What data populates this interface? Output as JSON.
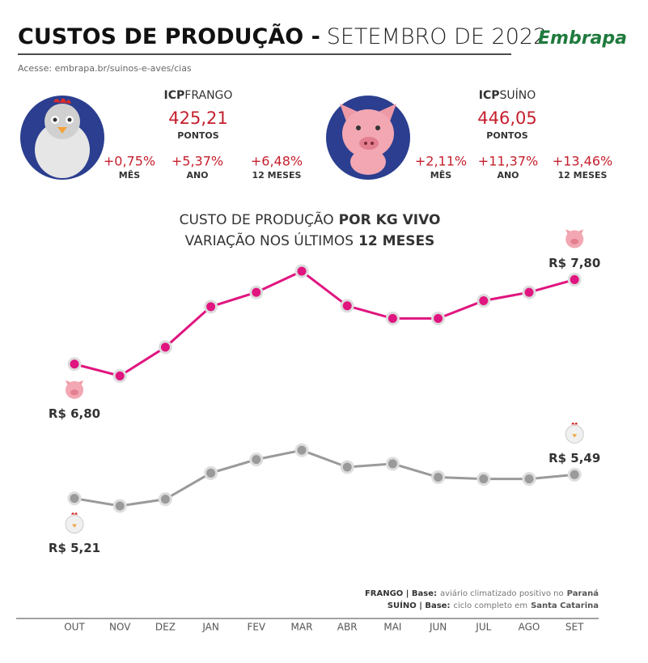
{
  "header": {
    "title_bold": "CUSTOS DE PRODUÇÃO -",
    "title_light": "SETEMBRO DE 2022",
    "logo": "Embrapa",
    "source": "Acesse: embrapa.br/suinos-e-aves/cias"
  },
  "indices": [
    {
      "prefix": "ICP",
      "name": "FRANGO",
      "value": "425,21",
      "unit": "PONTOS",
      "changes": [
        {
          "value": "+0,75%",
          "period": "MÊS"
        },
        {
          "value": "+5,37%",
          "period": "ANO"
        },
        {
          "value": "+6,48%",
          "period": "12 MESES"
        }
      ]
    },
    {
      "prefix": "ICP",
      "name": "SUÍNO",
      "value": "446,05",
      "unit": "PONTOS",
      "changes": [
        {
          "value": "+2,11%",
          "period": "MÊS"
        },
        {
          "value": "+11,37%",
          "period": "ANO"
        },
        {
          "value": "+13,46%",
          "period": "12 MESES"
        }
      ]
    }
  ],
  "chart_data": {
    "type": "line",
    "title": [
      "CUSTO DE PRODUÇÃO",
      "POR KG VIVO"
    ],
    "subtitle": [
      "VARIAÇÃO NOS ÚLTIMOS",
      "12 MESES"
    ],
    "categories": [
      "OUT",
      "NOV",
      "DEZ",
      "JAN",
      "FEV",
      "MAR",
      "ABR",
      "MAI",
      "JUN",
      "JUL",
      "AGO",
      "SET"
    ],
    "series": [
      {
        "color": "#e0157f",
        "values": [
          6.8,
          6.66,
          7.0,
          7.48,
          7.65,
          7.9,
          7.49,
          7.34,
          7.34,
          7.55,
          7.65,
          7.8
        ],
        "value_labels": [
          "R$ 6,80",
          null,
          null,
          null,
          null,
          null,
          null,
          null,
          null,
          null,
          null,
          "R$ 7,80"
        ]
      },
      {
        "color": "#9a9a9a",
        "values": [
          5.21,
          5.12,
          5.2,
          5.51,
          5.67,
          5.78,
          5.58,
          5.62,
          5.46,
          5.44,
          5.44,
          5.49
        ],
        "value_labels": [
          "R$ 5,21",
          null,
          null,
          null,
          null,
          null,
          null,
          null,
          null,
          null,
          null,
          "R$ 5,49"
        ]
      }
    ],
    "notes": [
      {
        "label": "FRANGO | Base:",
        "text": "aviário climatizado positivo no",
        "place": "Paraná"
      },
      {
        "label": "SUÍNO | Base:",
        "text": "ciclo completo em",
        "place": "Santa Catarina"
      }
    ]
  }
}
